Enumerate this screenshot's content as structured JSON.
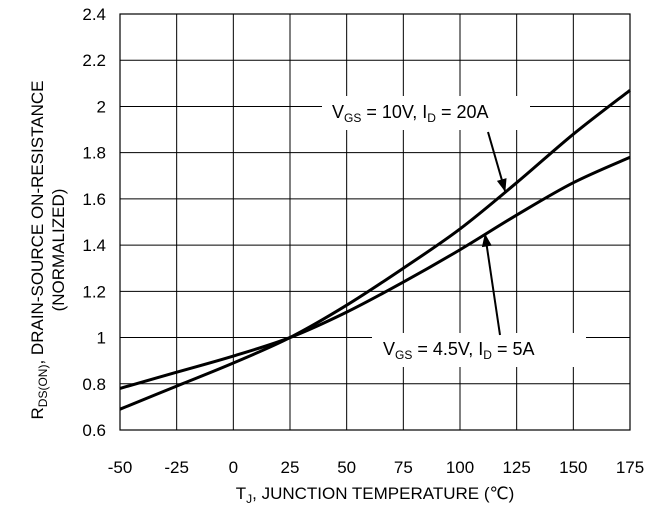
{
  "chart_data": {
    "type": "line",
    "xlabel": {
      "main": "T",
      "sub": "J",
      "rest": ", JUNCTION TEMPERATURE (℃)"
    },
    "ylabel": {
      "main": "R",
      "sub": "DS(ON)",
      "rest": ", DRAIN-SOURCE ON-RESISTANCE",
      "line2": "(NORMALIZED)"
    },
    "xlim": [
      -50,
      175
    ],
    "ylim": [
      0.6,
      2.4
    ],
    "x_ticks": [
      -50,
      -25,
      0,
      25,
      50,
      75,
      100,
      125,
      150,
      175
    ],
    "y_ticks": [
      0.6,
      0.8,
      1,
      1.2,
      1.4,
      1.6,
      1.8,
      2,
      2.2,
      2.4
    ],
    "x_tick_labels": [
      "-50",
      "-25",
      "0",
      "25",
      "50",
      "75",
      "100",
      "125",
      "150",
      "175"
    ],
    "y_tick_labels": [
      "0.6",
      "0.8",
      "1",
      "1.2",
      "1.4",
      "1.6",
      "1.8",
      "2",
      "2.2",
      "2.4"
    ],
    "grid": true,
    "series": [
      {
        "name": "VGS = 10V, ID = 20A",
        "x": [
          -50,
          -25,
          0,
          25,
          50,
          75,
          100,
          125,
          150,
          175
        ],
        "y": [
          0.69,
          0.79,
          0.89,
          1.0,
          1.14,
          1.3,
          1.47,
          1.67,
          1.88,
          2.07
        ]
      },
      {
        "name": "VGS = 4.5V, ID = 5A",
        "x": [
          -50,
          -25,
          0,
          25,
          50,
          75,
          100,
          125,
          150,
          175
        ],
        "y": [
          0.78,
          0.85,
          0.92,
          1.0,
          1.11,
          1.24,
          1.38,
          1.53,
          1.67,
          1.78
        ]
      }
    ],
    "annotations": [
      {
        "series": 0,
        "parts": {
          "a": "V",
          "a_sub": "GS",
          "b": " = 10V, I",
          "b_sub": "D",
          "c": " = 20A"
        }
      },
      {
        "series": 1,
        "parts": {
          "a": "V",
          "a_sub": "GS",
          "b": " = 4.5V, I",
          "b_sub": "D",
          "c": " = 5A"
        }
      }
    ],
    "colors": {
      "line": "#000000",
      "grid": "#000000",
      "background": "#ffffff"
    }
  }
}
